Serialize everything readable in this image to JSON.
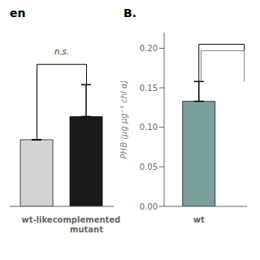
{
  "chart_data": [
    {
      "type": "bar",
      "title": "en",
      "categories": [
        "wt-like",
        "complemented\nmutant"
      ],
      "values": [
        0.115,
        0.155
      ],
      "colors": [
        "#d3d3d3",
        "#1a1a1a"
      ],
      "error_low": [
        0.0,
        0.0
      ],
      "error_high": [
        0.0,
        0.055
      ],
      "ylim": [
        0.0,
        0.3
      ],
      "yticks": [],
      "tick_labels": "x",
      "brackets": [
        {
          "y": 0.245,
          "color": "black"
        }
      ],
      "annotations": [
        {
          "text": "n.s.",
          "y": 0.255
        }
      ]
    },
    {
      "type": "bar",
      "title": "B.",
      "categories": [
        "wt"
      ],
      "values": [
        0.133
      ],
      "colors": [
        "#7a9e9a"
      ],
      "error_low": [
        0.0
      ],
      "error_high": [
        0.025
      ],
      "y_label": "PHB (μg μg⁻¹ chl α)",
      "ylim": [
        0.0,
        0.22
      ],
      "yticks": [
        {
          "value": 0.0,
          "label": "0.00"
        },
        0.05,
        {
          "value": 0.1,
          "label": "0.10"
        },
        0.15,
        {
          "value": 0.2,
          "label": "0.20"
        }
      ],
      "brackets": [
        {
          "y": 0.205,
          "color": "black"
        },
        {
          "y": 0.197,
          "color": "gray"
        }
      ]
    }
  ]
}
